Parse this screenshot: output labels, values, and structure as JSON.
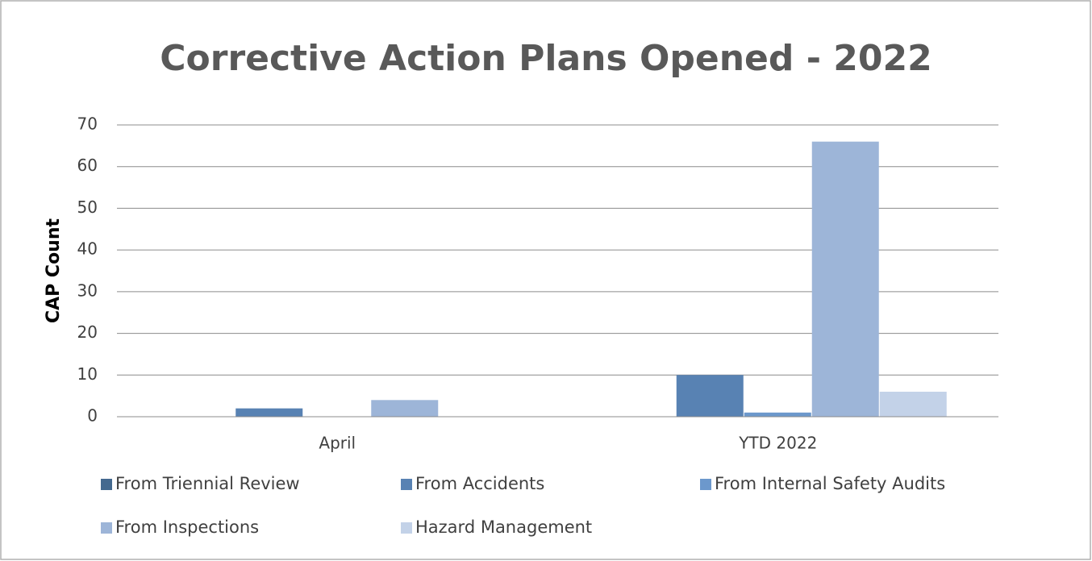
{
  "chart_data": {
    "type": "bar",
    "title": "Corrective Action Plans Opened - 2022",
    "y_label": "CAP Count",
    "categories": [
      "April",
      "YTD 2022"
    ],
    "series": [
      {
        "name": "From Triennial Review",
        "color": "#44698f",
        "values": [
          0,
          0
        ]
      },
      {
        "name": "From Accidents",
        "color": "#5882b3",
        "values": [
          2,
          10
        ]
      },
      {
        "name": "From Internal Safety Audits",
        "color": "#6c98cc",
        "values": [
          0,
          1
        ]
      },
      {
        "name": "From Inspections",
        "color": "#9db5d8",
        "values": [
          4,
          66
        ]
      },
      {
        "name": "Hazard Management",
        "color": "#c3d2e8",
        "values": [
          0,
          6
        ]
      }
    ],
    "ylim": [
      0,
      70
    ],
    "yticks": [
      0,
      10,
      20,
      30,
      40,
      50,
      60,
      70
    ],
    "grid": true,
    "legend": "bottom"
  }
}
